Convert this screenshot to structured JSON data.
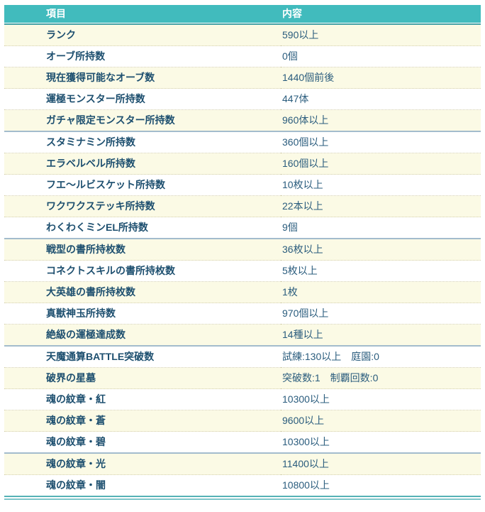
{
  "colors": {
    "header_bg": "#41bbbd",
    "header_underline": "#44a1a6",
    "row_odd_bg": "#fbfae5",
    "row_even_bg": "#ffffff",
    "dotted_divider": "#d4cfad",
    "group_divider": "#a3bccd",
    "bottom_rule_top": "#55b2b6",
    "bottom_rule_bottom": "#7fc6ca",
    "item_text": "#1d4f6f",
    "value_text": "#2a5c7d",
    "header_text": "#ffffff"
  },
  "table": {
    "columns": [
      {
        "label": "項目"
      },
      {
        "label": "内容"
      }
    ],
    "rows": [
      {
        "item": "ランク",
        "value": "590以上",
        "group_end": false
      },
      {
        "item": "オーブ所持数",
        "value": "0個",
        "group_end": false
      },
      {
        "item": "現在獲得可能なオーブ数",
        "value": "1440個前後",
        "group_end": false
      },
      {
        "item": "運極モンスター所持数",
        "value": "447体",
        "group_end": false
      },
      {
        "item": "ガチャ限定モンスター所持数",
        "value": "960体以上",
        "group_end": true
      },
      {
        "item": "スタミナミン所持数",
        "value": "360個以上",
        "group_end": false
      },
      {
        "item": "エラベルベル所持数",
        "value": "160個以上",
        "group_end": false
      },
      {
        "item": "フエ〜ルビスケット所持数",
        "value": "10枚以上",
        "group_end": false
      },
      {
        "item": "ワクワクステッキ所持数",
        "value": "22本以上",
        "group_end": false
      },
      {
        "item": "わくわくミンEL所持数",
        "value": "9個",
        "group_end": true
      },
      {
        "item": "戦型の書所持枚数",
        "value": "36枚以上",
        "group_end": false
      },
      {
        "item": "コネクトスキルの書所持枚数",
        "value": "5枚以上",
        "group_end": false
      },
      {
        "item": "大英雄の書所持枚数",
        "value": "1枚",
        "group_end": false
      },
      {
        "item": "真獣神玉所持数",
        "value": "970個以上",
        "group_end": false
      },
      {
        "item": "絶級の運極達成数",
        "value": "14種以上",
        "group_end": true
      },
      {
        "item": "天魔通算BATTLE突破数",
        "value": "試練:130以上　庭園:0",
        "group_end": false
      },
      {
        "item": "破界の星墓",
        "value": "突破数:1　制覇回数:0",
        "group_end": false
      },
      {
        "item": "魂の紋章・紅",
        "value": "10300以上",
        "group_end": false
      },
      {
        "item": "魂の紋章・蒼",
        "value": "9600以上",
        "group_end": false
      },
      {
        "item": "魂の紋章・碧",
        "value": "10300以上",
        "group_end": true
      },
      {
        "item": "魂の紋章・光",
        "value": "11400以上",
        "group_end": false
      },
      {
        "item": "魂の紋章・闇",
        "value": "10800以上",
        "group_end": false
      }
    ]
  }
}
